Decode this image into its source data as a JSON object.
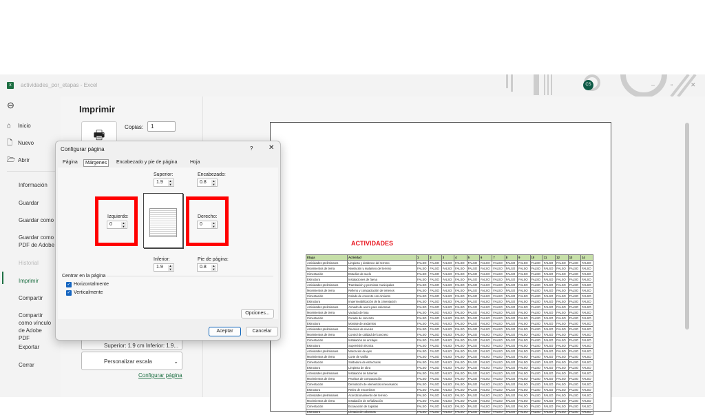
{
  "window": {
    "title": "actividades_por_etapas - Excel",
    "user_initials": "CS",
    "minimize": "–",
    "restore": "▫",
    "close": "✕"
  },
  "nav": {
    "back_icon": "arrow-left-circle",
    "items": [
      {
        "label": "Inicio",
        "icon": "home-icon"
      },
      {
        "label": "Nuevo",
        "icon": "new-file-icon"
      },
      {
        "label": "Abrir",
        "icon": "folder-icon"
      },
      {
        "label": "Información"
      },
      {
        "label": "Guardar"
      },
      {
        "label": "Guardar como"
      },
      {
        "label": "Guardar como PDF de Adobe"
      },
      {
        "label": "Historial",
        "disabled": true
      },
      {
        "label": "Imprimir",
        "active": true
      },
      {
        "label": "Compartir"
      },
      {
        "label": "Compartir como vínculo de Adobe PDF"
      },
      {
        "label": "Exportar"
      },
      {
        "label": "Cerrar"
      }
    ]
  },
  "print": {
    "title": "Imprimir",
    "copies_label": "Copias:",
    "copies_value": "1",
    "margins_setting": "Superior: 1.9 cm Inferior: 1.9...",
    "scale_setting": "Personalizar escala",
    "page_setup_link": "Configurar página"
  },
  "dialog": {
    "title": "Configurar página",
    "help": "?",
    "close": "✕",
    "tabs": [
      "Página",
      "Márgenes",
      "Encabezado y pie de página",
      "Hoja"
    ],
    "selected_tab": "Márgenes",
    "superior_label": "Superior:",
    "superior": "1.9",
    "encabezado_label": "Encabezado:",
    "encabezado": "0.8",
    "izquierdo_label": "Izquierdo:",
    "izquierdo": "0",
    "derecho_label": "Derecho:",
    "derecho": "0",
    "inferior_label": "Inferior:",
    "inferior": "1.9",
    "pie_label": "Pie de página:",
    "pie": "0.8",
    "center_label": "Centrar en la página",
    "horizontal_label": "Horizontalmente",
    "horizontal": true,
    "vertical_label": "Verticalmente",
    "vertical": true,
    "options_button": "Opciones...",
    "ok_button": "Aceptar",
    "cancel_button": "Cancelar",
    "highlight_color": "#ff0000"
  },
  "sheet": {
    "title": "ACTIVIDADES",
    "headers": [
      "Etapa",
      "Actividad",
      "1",
      "2",
      "3",
      "4",
      "5",
      "6",
      "7",
      "8",
      "9",
      "10",
      "11",
      "12",
      "13",
      "14"
    ],
    "cell_value": "FALSO",
    "rows": [
      [
        "Actividades preliminares",
        "Limpieza y desbroce del terreno"
      ],
      [
        "Movimientos de tierra",
        "Nivelación y replanteo del terreno"
      ],
      [
        "Cimentación",
        "Estudios de suelo"
      ],
      [
        "Estructura",
        "Instalaciones de faena"
      ],
      [
        "Actividades preliminares",
        "Tramitación y permisos municipales"
      ],
      [
        "Movimientos de tierra",
        "Relleno y compactación de terrenos"
      ],
      [
        "Cimentación",
        "Colado de concreto con cimiento"
      ],
      [
        "Estructura",
        "Impermeabilización de la cimentación"
      ],
      [
        "Actividades preliminares",
        "Armado de acero para columnas"
      ],
      [
        "Movimientos de tierra",
        "Vaciado de losa"
      ],
      [
        "Cimentación",
        "Curado de concreto"
      ],
      [
        "Estructura",
        "Montaje de andamios"
      ],
      [
        "Actividades preliminares",
        "Revisión de niveles"
      ],
      [
        "Movimientos de tierra",
        "Control de calidad del concreto"
      ],
      [
        "Cimentación",
        "Instalación de anclajes"
      ],
      [
        "Estructura",
        "Supervisión técnica"
      ],
      [
        "Actividades preliminares",
        "Marcación de ejes"
      ],
      [
        "Movimientos de tierra",
        "Corte de varilla"
      ],
      [
        "Cimentación",
        "Soldadura de estructuras"
      ],
      [
        "Estructura",
        "Limpieza de obra"
      ],
      [
        "Actividades preliminares",
        "Instalación de tuberías"
      ],
      [
        "Movimientos de tierra",
        "Pruebas de compactación"
      ],
      [
        "Cimentación",
        "Demolición de elementos innecesarios"
      ],
      [
        "Estructura",
        "Retiro de escombros"
      ],
      [
        "Actividades preliminares",
        "Acondicionamiento del terreno"
      ],
      [
        "Movimientos de tierra",
        "Instalación de señalización"
      ],
      [
        "Cimentación",
        "Excavación de zapatas"
      ],
      [
        "Estructura",
        "Llenado de columnas"
      ]
    ]
  }
}
